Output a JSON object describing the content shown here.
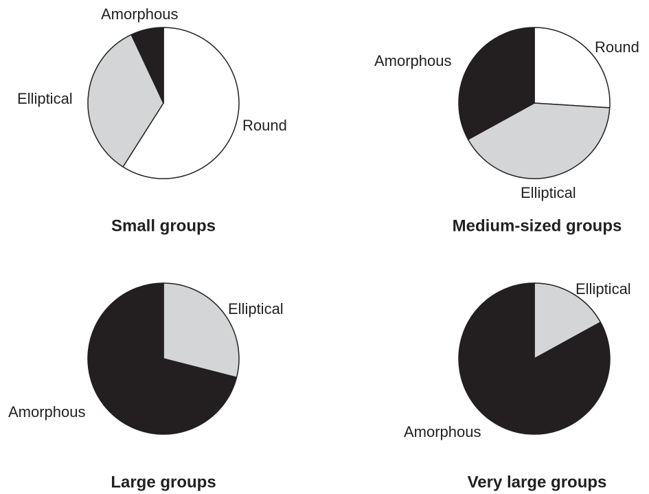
{
  "chart_data": [
    {
      "type": "pie",
      "title": "Small groups",
      "categories": [
        "Round",
        "Elliptical",
        "Amorphous"
      ],
      "values": [
        59,
        34,
        7
      ],
      "colors": [
        "#ffffff",
        "#d4d5d7",
        "#231f20"
      ]
    },
    {
      "type": "pie",
      "title": "Medium-sized groups",
      "categories": [
        "Round",
        "Elliptical",
        "Amorphous"
      ],
      "values": [
        26,
        41,
        33
      ],
      "colors": [
        "#ffffff",
        "#d4d5d7",
        "#231f20"
      ]
    },
    {
      "type": "pie",
      "title": "Large groups",
      "categories": [
        "Elliptical",
        "Amorphous"
      ],
      "values": [
        29,
        71
      ],
      "colors": [
        "#d4d5d7",
        "#231f20"
      ]
    },
    {
      "type": "pie",
      "title": "Very large groups",
      "categories": [
        "Elliptical",
        "Amorphous"
      ],
      "values": [
        17,
        83
      ],
      "colors": [
        "#d4d5d7",
        "#231f20"
      ]
    }
  ]
}
